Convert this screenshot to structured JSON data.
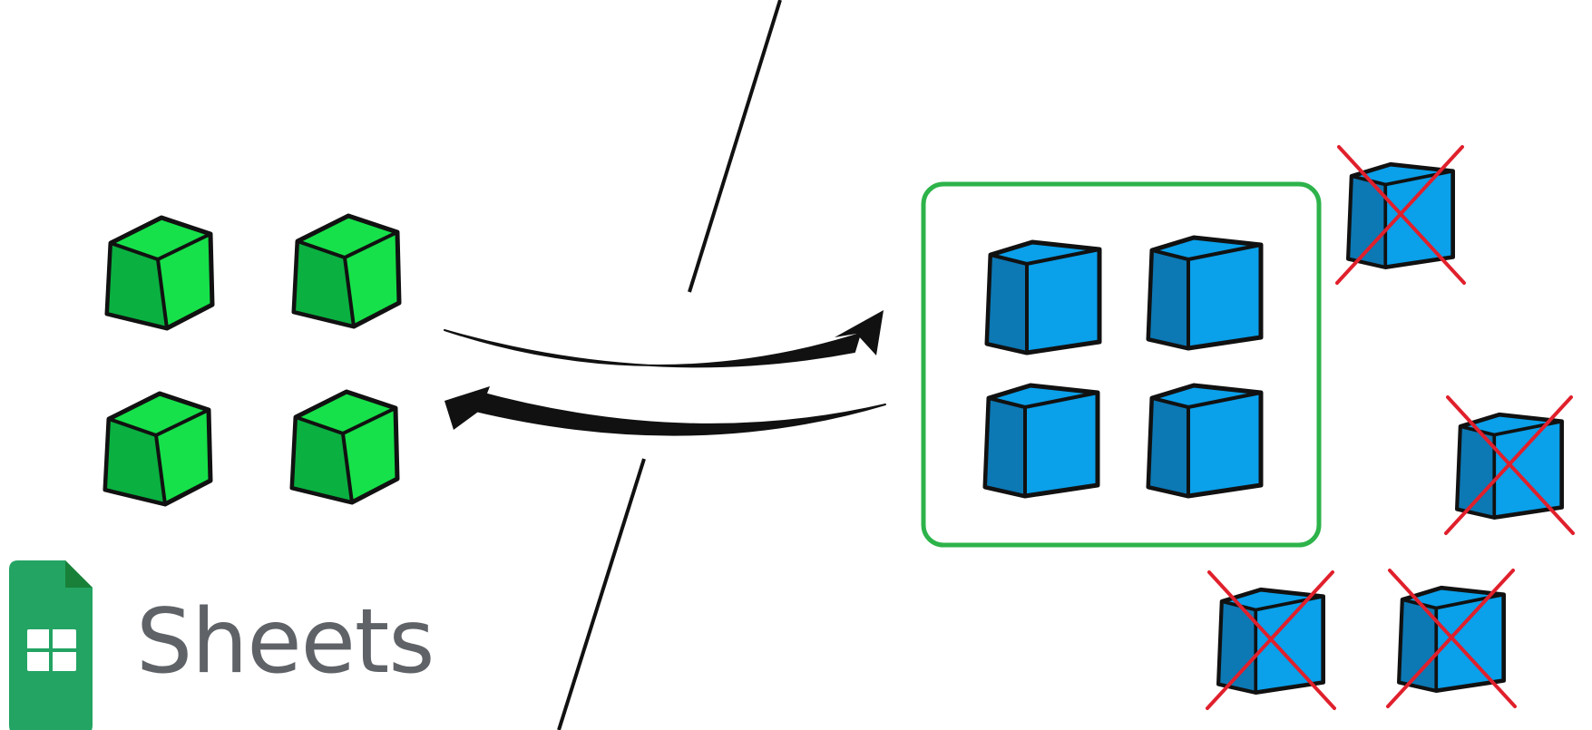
{
  "logo": {
    "label": "Sheets",
    "icon": "google-sheets-icon"
  },
  "colors": {
    "green_cube_face": "#16e14a",
    "green_cube_side": "#0ab040",
    "blue_cube_face": "#0aa0ea",
    "blue_cube_side": "#0c78b4",
    "selection_border": "#2db34a",
    "cross": "#e0202c",
    "outline": "#111111",
    "sheets_icon": "#23a463"
  },
  "groups": {
    "local_cubes": 4,
    "selected_remote_cubes": 4,
    "excluded_remote_cubes": 4
  }
}
